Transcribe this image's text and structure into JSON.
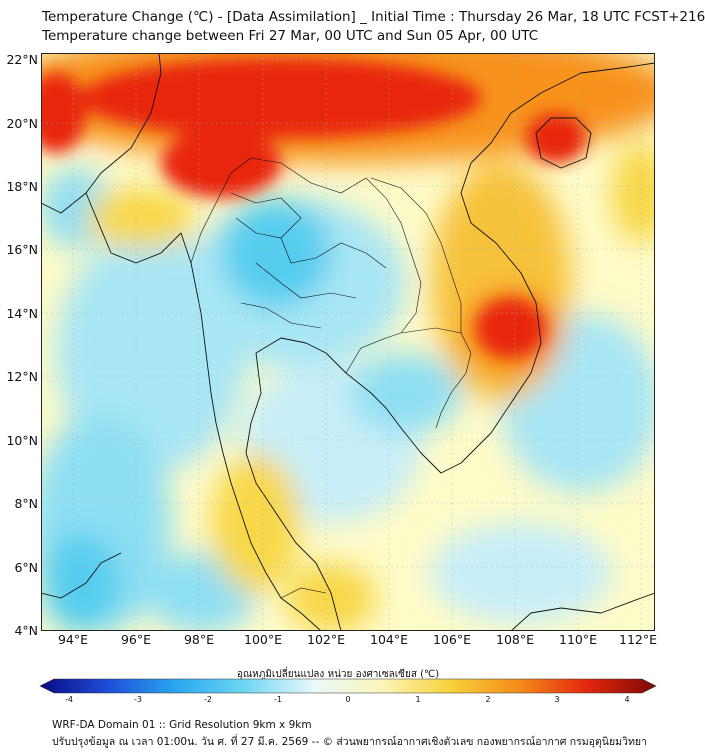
{
  "header": {
    "title_line1": "Temperature Change (℃) - [Data Assimilation] _ Initial Time : Thursday 26 Mar, 18 UTC FCST+216",
    "title_line2": "Temperature change between Fri 27 Mar, 00 UTC and Sun 05 Apr, 00 UTC"
  },
  "map": {
    "lat_labels": [
      "22°N",
      "20°N",
      "18°N",
      "16°N",
      "14°N",
      "12°N",
      "10°N",
      "8°N",
      "6°N",
      "4°N"
    ],
    "lon_labels": [
      "94°E",
      "96°E",
      "98°E",
      "100°E",
      "102°E",
      "104°E",
      "106°E",
      "108°E",
      "110°E",
      "112°E"
    ],
    "palette": {
      "hot": "#e8260e",
      "warm": "#f7931e",
      "mild": "#f8d848",
      "light": "#fdfbc8",
      "cool": "#a9e6f4",
      "cold": "#57cdee",
      "coast": "#111111"
    }
  },
  "colorbar": {
    "title": "อุณหภูมิเปลี่ยนแปลง หน่วย องศาเซลเซียส (℃)",
    "ticks": [
      "-4",
      "-3",
      "-2",
      "-1",
      "0",
      "1",
      "2",
      "3",
      "4"
    ],
    "colors": [
      "#0a0a82",
      "#1d4fd8",
      "#2aa8ee",
      "#6fd7f2",
      "#e9f8fb",
      "#fbf5b9",
      "#f7d23a",
      "#f48b1c",
      "#e2260d",
      "#7a0a05"
    ]
  },
  "footer": {
    "line1": "WRF-DA Domain 01 :: Grid Resolution 9km x 9km",
    "line2": "ปรับปรุงข้อมูล ณ เวลา 01:00น. วัน ศ. ที่ 27 มี.ค. 2569 -- © ส่วนพยากรณ์อากาศเชิงตัวเลข กองพยากรณ์อากาศ กรมอุตุนิยมวิทยา"
  }
}
